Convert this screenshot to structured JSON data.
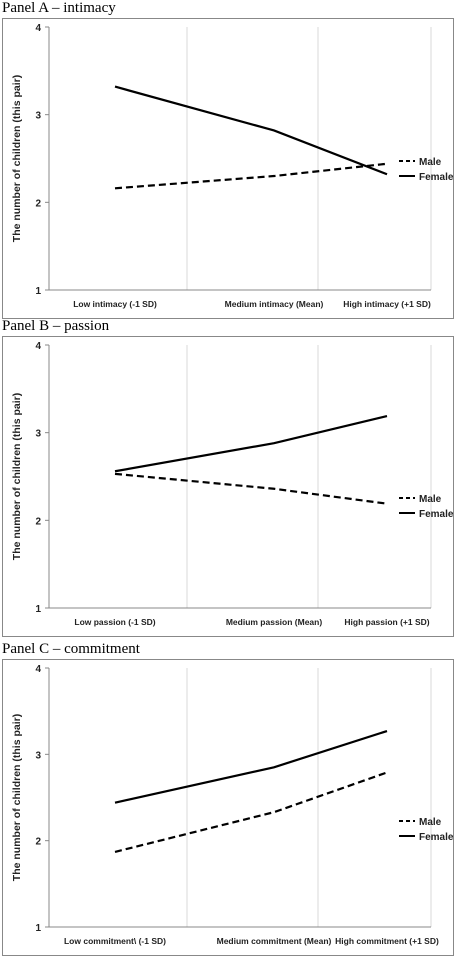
{
  "panels": [
    {
      "title": "Panel A – intimacy"
    },
    {
      "title": "Panel B – passion"
    },
    {
      "title": "Panel C – commitment"
    }
  ],
  "chart_data": [
    {
      "type": "line",
      "title": "Panel A – intimacy",
      "ylabel": "The number of children (this pair)",
      "categories": [
        "Low intimacy (-1 SD)",
        "Medium intimacy (Mean)",
        "High intimacy (+1 SD)"
      ],
      "ylim": [
        1,
        4
      ],
      "yticks": [
        1,
        2,
        3,
        4
      ],
      "grid": true,
      "legend_position": "right",
      "series": [
        {
          "name": "Male",
          "style": "dashed",
          "color": "#000000",
          "values": [
            2.16,
            2.3,
            2.44
          ]
        },
        {
          "name": "Female",
          "style": "solid",
          "color": "#000000",
          "values": [
            3.32,
            2.82,
            2.32
          ]
        }
      ]
    },
    {
      "type": "line",
      "title": "Panel B – passion",
      "ylabel": "The number of children (this pair)",
      "categories": [
        "Low passion (-1 SD)",
        "Medium passion (Mean)",
        "High passion (+1 SD)"
      ],
      "ylim": [
        1,
        4
      ],
      "yticks": [
        1,
        2,
        3,
        4
      ],
      "grid": true,
      "legend_position": "right",
      "series": [
        {
          "name": "Male",
          "style": "dashed",
          "color": "#000000",
          "values": [
            2.53,
            2.36,
            2.19
          ]
        },
        {
          "name": "Female",
          "style": "solid",
          "color": "#000000",
          "values": [
            2.56,
            2.88,
            3.19
          ]
        }
      ]
    },
    {
      "type": "line",
      "title": "Panel C – commitment",
      "ylabel": "The number of children (this pair)",
      "categories": [
        "Low commitment\\ (-1 SD)",
        "Medium commitment (Mean)",
        "High commitment (+1 SD)"
      ],
      "ylim": [
        1,
        4
      ],
      "yticks": [
        1,
        2,
        3,
        4
      ],
      "grid": true,
      "legend_position": "right",
      "series": [
        {
          "name": "Male",
          "style": "dashed",
          "color": "#000000",
          "values": [
            1.87,
            2.33,
            2.79
          ]
        },
        {
          "name": "Female",
          "style": "solid",
          "color": "#000000",
          "values": [
            2.44,
            2.85,
            3.27
          ]
        }
      ]
    }
  ]
}
